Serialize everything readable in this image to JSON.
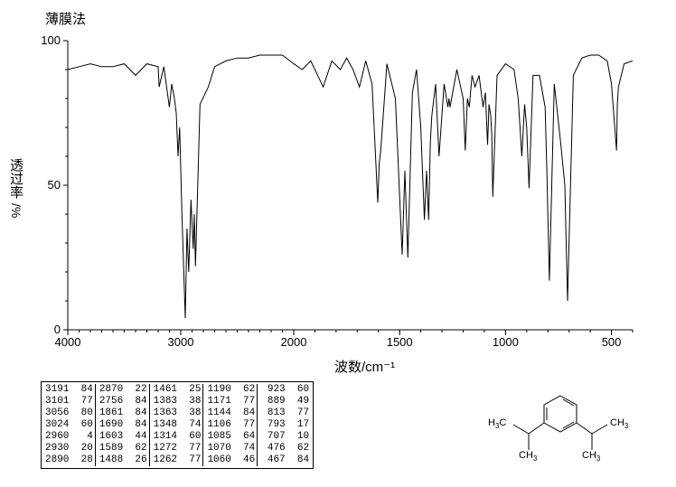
{
  "title": "薄膜法",
  "chart": {
    "type": "line",
    "ylabel_main": "透过率",
    "ylabel_unit": "%",
    "xlabel": "波数/cm⁻¹",
    "xlim": [
      4000,
      400
    ],
    "ylim": [
      0,
      100
    ],
    "xtick_positions": [
      4000,
      3000,
      2000,
      1500,
      1000,
      500
    ],
    "xtick_labels": [
      "4000",
      "3000",
      "2000",
      "1500",
      "1000",
      "500"
    ],
    "ytick_positions": [
      0,
      50,
      100
    ],
    "ytick_labels": [
      "0",
      "50",
      "100"
    ],
    "line_color": "#000000",
    "background_color": "#ffffff",
    "axis_color": "#000000",
    "tick_fontsize": 13,
    "label_fontsize": 15
  },
  "peak_table": {
    "columns": 5,
    "rows_per_col": 7,
    "data": [
      [
        "3191  84",
        "3101  77",
        "3056  80",
        "3024  60",
        "2960   4",
        "2930  20",
        "2890  28"
      ],
      [
        "2870  22",
        "2756  84",
        "1861  84",
        "1690  84",
        "1603  44",
        "1589  62",
        "1488  26"
      ],
      [
        "1461  25",
        "1383  38",
        "1363  38",
        "1348  74",
        "1314  60",
        "1272  77",
        "1262  77"
      ],
      [
        "1190  62",
        "1171  77",
        "1144  84",
        "1106  77",
        "1085  64",
        "1070  74",
        "1060  46"
      ],
      [
        " 923  60",
        " 889  49",
        " 813  77",
        " 793  17",
        " 707  10",
        " 476  62",
        " 467  84"
      ]
    ],
    "font_family": "Courier New",
    "font_size": 11,
    "border_color": "#000000"
  },
  "structure": {
    "labels": {
      "ch3_tl": "H₃C",
      "ch3_tr": "CH₃",
      "ch3_bl": "CH₃",
      "ch3_br": "CH₃"
    },
    "line_color": "#000000"
  },
  "spectrum_peaks": [
    {
      "wn": 4000,
      "t": 90
    },
    {
      "wn": 3900,
      "t": 91
    },
    {
      "wn": 3800,
      "t": 92
    },
    {
      "wn": 3700,
      "t": 91
    },
    {
      "wn": 3600,
      "t": 91
    },
    {
      "wn": 3500,
      "t": 92
    },
    {
      "wn": 3400,
      "t": 88
    },
    {
      "wn": 3300,
      "t": 92
    },
    {
      "wn": 3200,
      "t": 91
    },
    {
      "wn": 3191,
      "t": 84
    },
    {
      "wn": 3150,
      "t": 91
    },
    {
      "wn": 3101,
      "t": 77
    },
    {
      "wn": 3080,
      "t": 85
    },
    {
      "wn": 3056,
      "t": 80
    },
    {
      "wn": 3040,
      "t": 75
    },
    {
      "wn": 3024,
      "t": 60
    },
    {
      "wn": 3010,
      "t": 70
    },
    {
      "wn": 2990,
      "t": 40
    },
    {
      "wn": 2960,
      "t": 4
    },
    {
      "wn": 2945,
      "t": 35
    },
    {
      "wn": 2930,
      "t": 20
    },
    {
      "wn": 2910,
      "t": 45
    },
    {
      "wn": 2890,
      "t": 28
    },
    {
      "wn": 2880,
      "t": 40
    },
    {
      "wn": 2870,
      "t": 22
    },
    {
      "wn": 2830,
      "t": 78
    },
    {
      "wn": 2756,
      "t": 84
    },
    {
      "wn": 2700,
      "t": 91
    },
    {
      "wn": 2600,
      "t": 93
    },
    {
      "wn": 2500,
      "t": 94
    },
    {
      "wn": 2400,
      "t": 94
    },
    {
      "wn": 2300,
      "t": 95
    },
    {
      "wn": 2200,
      "t": 95
    },
    {
      "wn": 2100,
      "t": 95
    },
    {
      "wn": 2000,
      "t": 92
    },
    {
      "wn": 1960,
      "t": 90
    },
    {
      "wn": 1920,
      "t": 93
    },
    {
      "wn": 1861,
      "t": 84
    },
    {
      "wn": 1820,
      "t": 93
    },
    {
      "wn": 1780,
      "t": 90
    },
    {
      "wn": 1750,
      "t": 94
    },
    {
      "wn": 1720,
      "t": 90
    },
    {
      "wn": 1690,
      "t": 84
    },
    {
      "wn": 1660,
      "t": 93
    },
    {
      "wn": 1630,
      "t": 85
    },
    {
      "wn": 1603,
      "t": 44
    },
    {
      "wn": 1596,
      "t": 58
    },
    {
      "wn": 1589,
      "t": 62
    },
    {
      "wn": 1560,
      "t": 92
    },
    {
      "wn": 1520,
      "t": 80
    },
    {
      "wn": 1488,
      "t": 26
    },
    {
      "wn": 1475,
      "t": 55
    },
    {
      "wn": 1461,
      "t": 25
    },
    {
      "wn": 1440,
      "t": 82
    },
    {
      "wn": 1420,
      "t": 90
    },
    {
      "wn": 1400,
      "t": 70
    },
    {
      "wn": 1383,
      "t": 38
    },
    {
      "wn": 1373,
      "t": 55
    },
    {
      "wn": 1363,
      "t": 38
    },
    {
      "wn": 1355,
      "t": 65
    },
    {
      "wn": 1348,
      "t": 74
    },
    {
      "wn": 1330,
      "t": 85
    },
    {
      "wn": 1314,
      "t": 60
    },
    {
      "wn": 1290,
      "t": 85
    },
    {
      "wn": 1272,
      "t": 77
    },
    {
      "wn": 1267,
      "t": 80
    },
    {
      "wn": 1262,
      "t": 77
    },
    {
      "wn": 1230,
      "t": 90
    },
    {
      "wn": 1200,
      "t": 80
    },
    {
      "wn": 1190,
      "t": 62
    },
    {
      "wn": 1180,
      "t": 80
    },
    {
      "wn": 1171,
      "t": 77
    },
    {
      "wn": 1158,
      "t": 88
    },
    {
      "wn": 1144,
      "t": 84
    },
    {
      "wn": 1125,
      "t": 88
    },
    {
      "wn": 1106,
      "t": 77
    },
    {
      "wn": 1095,
      "t": 82
    },
    {
      "wn": 1085,
      "t": 64
    },
    {
      "wn": 1078,
      "t": 78
    },
    {
      "wn": 1070,
      "t": 74
    },
    {
      "wn": 1065,
      "t": 68
    },
    {
      "wn": 1060,
      "t": 46
    },
    {
      "wn": 1040,
      "t": 88
    },
    {
      "wn": 1000,
      "t": 92
    },
    {
      "wn": 960,
      "t": 90
    },
    {
      "wn": 940,
      "t": 80
    },
    {
      "wn": 923,
      "t": 60
    },
    {
      "wn": 910,
      "t": 78
    },
    {
      "wn": 900,
      "t": 70
    },
    {
      "wn": 889,
      "t": 49
    },
    {
      "wn": 870,
      "t": 88
    },
    {
      "wn": 840,
      "t": 88
    },
    {
      "wn": 813,
      "t": 77
    },
    {
      "wn": 805,
      "t": 55
    },
    {
      "wn": 793,
      "t": 17
    },
    {
      "wn": 770,
      "t": 85
    },
    {
      "wn": 740,
      "t": 65
    },
    {
      "wn": 720,
      "t": 50
    },
    {
      "wn": 707,
      "t": 10
    },
    {
      "wn": 680,
      "t": 88
    },
    {
      "wn": 640,
      "t": 94
    },
    {
      "wn": 600,
      "t": 95
    },
    {
      "wn": 560,
      "t": 95
    },
    {
      "wn": 520,
      "t": 93
    },
    {
      "wn": 500,
      "t": 85
    },
    {
      "wn": 476,
      "t": 62
    },
    {
      "wn": 472,
      "t": 78
    },
    {
      "wn": 467,
      "t": 84
    },
    {
      "wn": 440,
      "t": 92
    },
    {
      "wn": 400,
      "t": 93
    }
  ]
}
